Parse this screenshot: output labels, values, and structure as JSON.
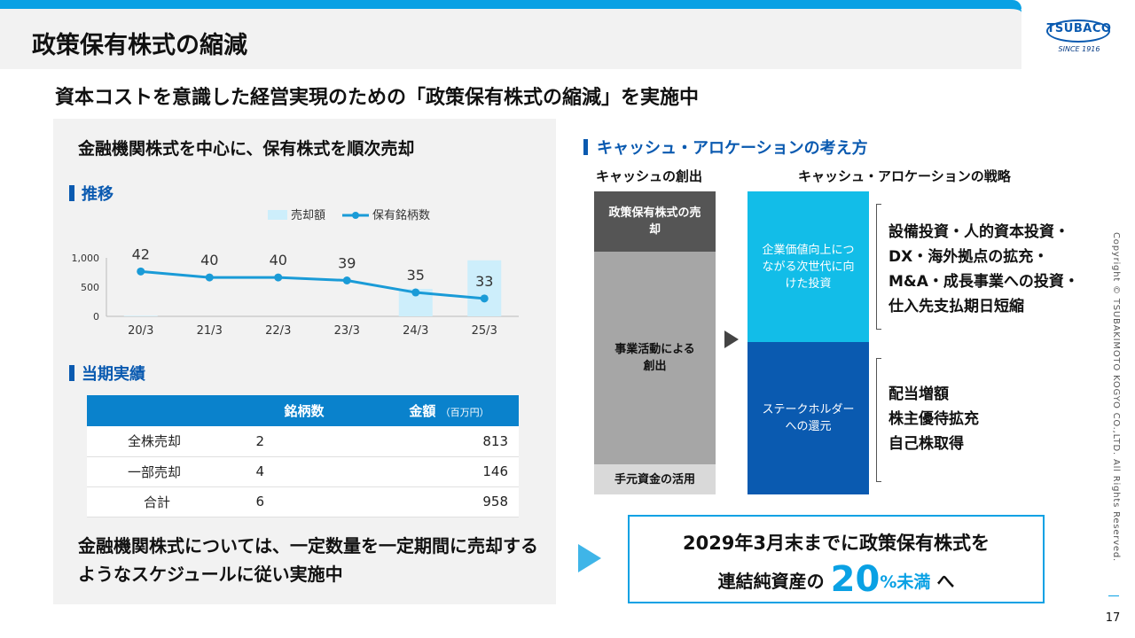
{
  "header": {
    "title": "政策保有株式の縮減"
  },
  "logo": {
    "text": "TSUBACO",
    "since": "SINCE 1916"
  },
  "subtitle": "資本コストを意識した経営実現のための「政策保有株式の縮減」を実施中",
  "left": {
    "heading": "金融機関株式を中心に、保有株式を順次売却",
    "trend_label": "推移",
    "results_label": "当期実績",
    "table": {
      "headers": [
        "",
        "銘柄数",
        "金額",
        "（百万円）"
      ],
      "rows": [
        [
          "全株売却",
          "2",
          "813"
        ],
        [
          "一部売却",
          "4",
          "146"
        ],
        [
          "合計",
          "6",
          "958"
        ]
      ]
    },
    "note": "金融機関株式については、一定数量を一定期間に売却するようなスケジュールに従い実施中"
  },
  "chart_data": {
    "type": "bar+line",
    "categories": [
      "20/3",
      "21/3",
      "22/3",
      "23/3",
      "24/3",
      "25/3"
    ],
    "series": [
      {
        "name": "売却額",
        "type": "bar",
        "color": "#cdeefb",
        "values": [
          10,
          0,
          0,
          0,
          470,
          958
        ]
      },
      {
        "name": "保有銘柄数",
        "type": "line",
        "color": "#1a9bd7",
        "values": [
          42,
          40,
          40,
          39,
          35,
          33
        ]
      }
    ],
    "y_ticks": [
      "1,000",
      "500",
      "0"
    ],
    "ylim": [
      0,
      1000
    ],
    "legend": "top"
  },
  "right": {
    "heading": "キャッシュ・アロケーションの考え方",
    "col1_head": "キャッシュの創出",
    "col2_head": "キャッシュ・アロケーションの戦略",
    "blocks": {
      "policy_sale": "政策保有株式の売却",
      "business": "事業活動による創出",
      "cash": "手元資金の活用",
      "invest": "企業価値向上につながる次世代に向けた投資",
      "return": "ステークホルダーへの還元"
    },
    "invest_items": [
      "設備投資・人的資本投資・",
      "DX・海外拠点の拡充・",
      "M&A・成長事業への投資・",
      "仕入先支払期日短縮"
    ],
    "return_items": [
      "配当増額",
      "株主優待拡充",
      "自己株取得"
    ]
  },
  "goal": {
    "line1": "2029年3月末までに政策保有株式を",
    "line2_pre": "連結純資産の",
    "big": "20",
    "pct": "%未満",
    "line2_post": "へ"
  },
  "footer": {
    "copyright": "Copyright © TSUBAKIMOTO KOGYO CO.,LTD. All Rights Reserved.",
    "page": "17"
  }
}
